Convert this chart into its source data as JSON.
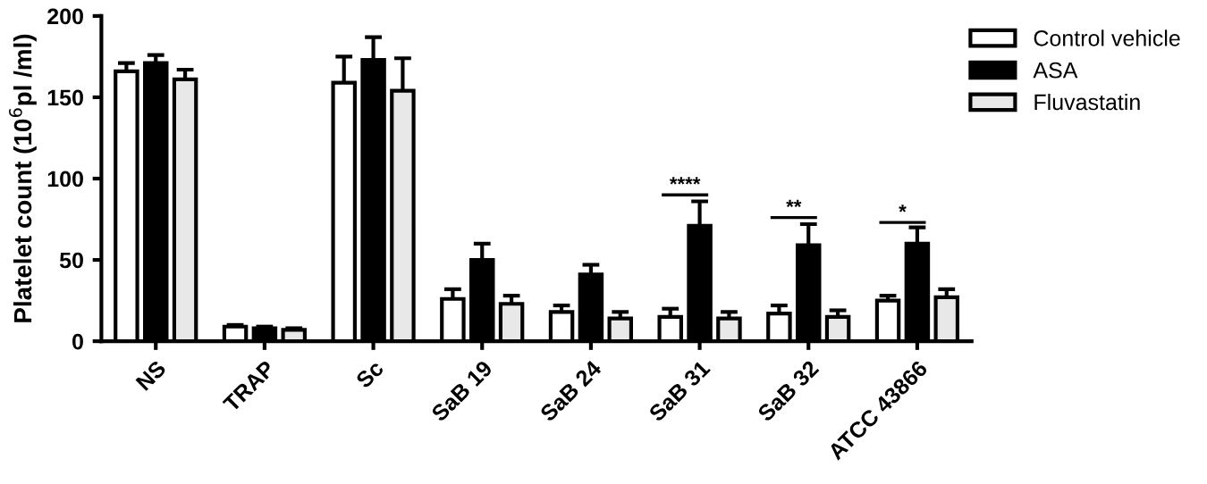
{
  "chart_data": {
    "type": "bar",
    "ylabel": "Platelet count (10$^{6}$pl /ml)",
    "categories": [
      "NS",
      "TRAP",
      "Sc",
      "SaB 19",
      "SaB 24",
      "SaB 31",
      "SaB 32",
      "ATCC 43866"
    ],
    "series": [
      {
        "name": "Control vehicle",
        "color": "#ffffff",
        "values": [
          166,
          9,
          159,
          26,
          18,
          15,
          17,
          25
        ],
        "errors": [
          [
            166,
            171
          ],
          [
            9,
            10
          ],
          [
            159,
            175
          ],
          [
            26,
            32
          ],
          [
            18,
            22
          ],
          [
            15,
            20
          ],
          [
            17,
            22
          ],
          [
            25,
            28
          ]
        ]
      },
      {
        "name": "ASA",
        "color": "#000000",
        "values": [
          171,
          8,
          173,
          50,
          41,
          71,
          59,
          60
        ],
        "errors": [
          [
            171,
            176
          ],
          [
            8,
            9
          ],
          [
            173,
            187
          ],
          [
            50,
            60
          ],
          [
            41,
            47
          ],
          [
            71,
            86
          ],
          [
            59,
            72
          ],
          [
            60,
            70
          ]
        ]
      },
      {
        "name": "Fluvastatin",
        "color": "#e8e8e8",
        "values": [
          161,
          7,
          154,
          23,
          14,
          14,
          15,
          27
        ],
        "errors": [
          [
            161,
            167
          ],
          [
            7,
            8
          ],
          [
            154,
            174
          ],
          [
            23,
            28
          ],
          [
            14,
            18
          ],
          [
            14,
            18
          ],
          [
            15,
            19
          ],
          [
            27,
            32
          ]
        ]
      }
    ],
    "ylim": [
      0,
      200
    ],
    "yticks": [
      0,
      50,
      100,
      150,
      200
    ],
    "grid": false,
    "legend": "top right",
    "annotations": [
      {
        "text": "****",
        "x": "SaB 31",
        "y": 90
      },
      {
        "text": "**",
        "x": "SaB 32",
        "y": 76
      },
      {
        "text": "*",
        "x": "ATCC 43866",
        "y": 73
      }
    ]
  }
}
